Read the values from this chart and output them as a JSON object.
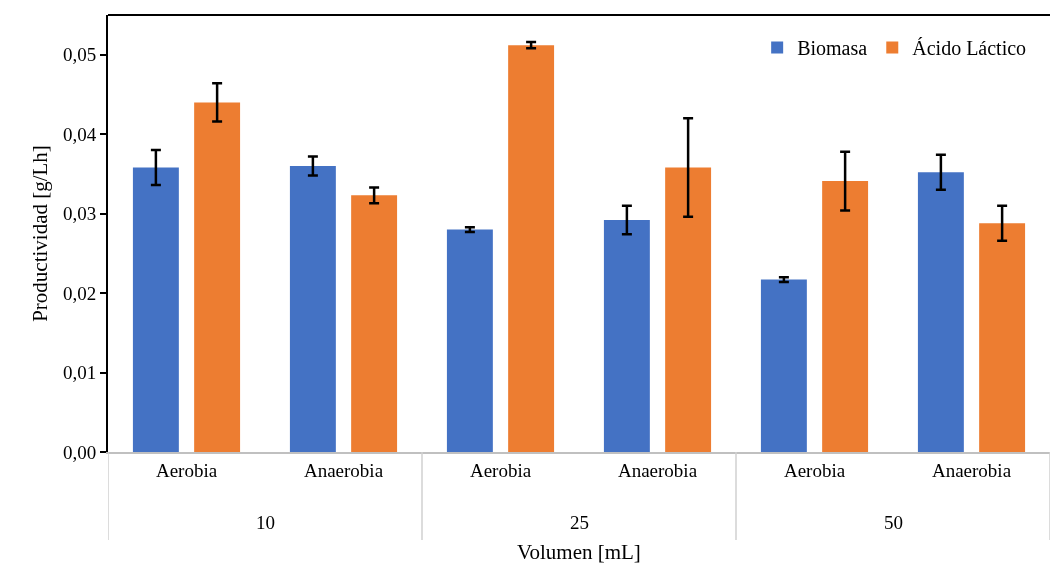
{
  "chart_data": {
    "type": "bar",
    "xlabel": "Volumen [mL]",
    "ylabel": "Productividad [g/Lh]",
    "categories": [
      "Aerobia",
      "Anaerobia",
      "Aerobia",
      "Anaerobia",
      "Aerobia",
      "Anaerobia"
    ],
    "annotations": [
      "10",
      "25",
      "50"
    ],
    "series": [
      {
        "name": "Biomasa",
        "color": "#4472c4",
        "values": [
          0.0358,
          0.036,
          0.028,
          0.0292,
          0.0217,
          0.0352
        ],
        "errors": [
          0.0022,
          0.0012,
          0.0003,
          0.0018,
          0.0003,
          0.0022
        ]
      },
      {
        "name": "Ácido Láctico",
        "color": "#ed7d31",
        "values": [
          0.044,
          0.0323,
          0.0512,
          0.0358,
          0.0341,
          0.0288
        ],
        "errors": [
          0.0024,
          0.001,
          0.0004,
          0.0062,
          0.0037,
          0.0022
        ]
      }
    ],
    "ylim": [
      0,
      0.055
    ],
    "yticks": [
      {
        "value": 0,
        "label": "0,00"
      },
      {
        "value": 0.01,
        "label": "0,01"
      },
      {
        "value": 0.02,
        "label": "0,02"
      },
      {
        "value": 0.03,
        "label": "0,03"
      },
      {
        "value": 0.04,
        "label": "0,04"
      },
      {
        "value": 0.05,
        "label": "0,05"
      }
    ],
    "grid": false,
    "legend": "top right"
  }
}
